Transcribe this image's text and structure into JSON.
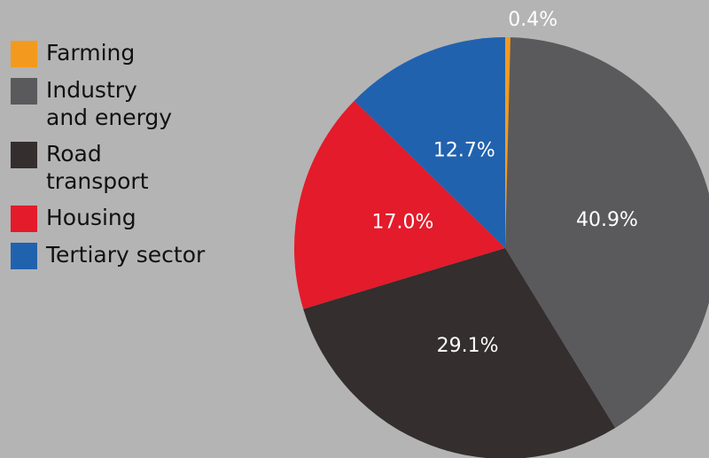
{
  "chart_data": {
    "type": "pie",
    "categories": [
      "Farming",
      "Industry\nand energy",
      "Road\ntransport",
      "Housing",
      "Tertiary sector"
    ],
    "values": [
      0.4,
      40.9,
      29.1,
      17.0,
      12.7
    ],
    "value_labels": [
      "0.4%",
      "40.9%",
      "29.1%",
      "17.0%",
      "12.7%"
    ],
    "colors": [
      "#f39a1e",
      "#5a5a5c",
      "#342e2e",
      "#e31b2b",
      "#2162ae"
    ],
    "legend": "left"
  }
}
